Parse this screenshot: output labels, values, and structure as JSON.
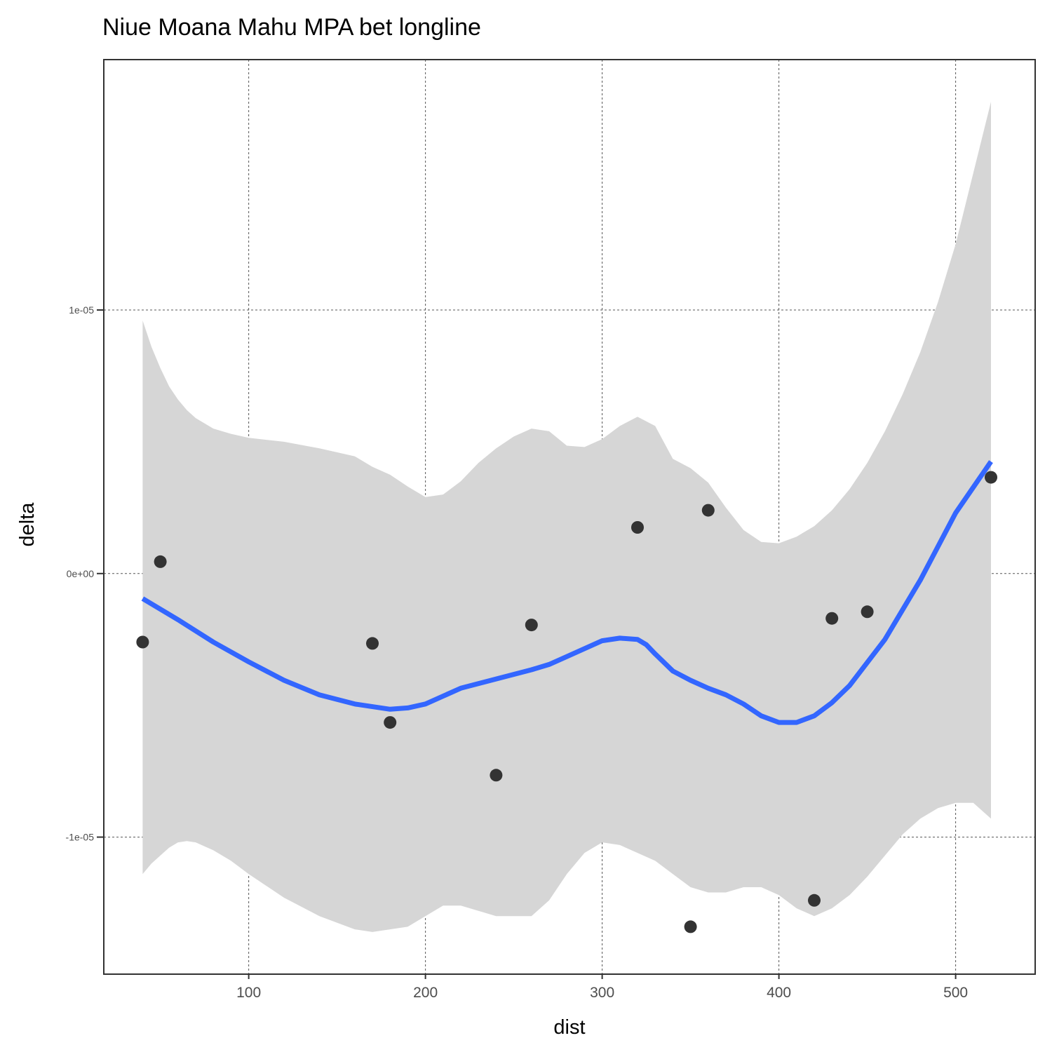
{
  "chart_data": {
    "type": "scatter",
    "title": "Niue Moana Mahu MPA bet longline",
    "xlabel": "dist",
    "ylabel": "delta",
    "xlim": [
      18,
      545
    ],
    "ylim": [
      -1.52e-05,
      1.95e-05
    ],
    "x_ticks": [
      100,
      200,
      300,
      400,
      500
    ],
    "x_tick_labels": [
      "100",
      "200",
      "300",
      "400",
      "500"
    ],
    "y_ticks": [
      -1e-05,
      0,
      1e-05
    ],
    "y_tick_labels": [
      "-1e-05",
      "0e+00",
      "1e-05"
    ],
    "grid": true,
    "legend": "none",
    "colors": {
      "points": "#333333",
      "smooth_line": "#3366ff",
      "ribbon": "#d6d6d6",
      "grid": "#555555",
      "frame": "#333333"
    },
    "series": [
      {
        "type": "scatter",
        "points": [
          {
            "x": 40,
            "y": -2.6e-06
          },
          {
            "x": 50,
            "y": 4.5e-07
          },
          {
            "x": 170,
            "y": -2.65e-06
          },
          {
            "x": 180,
            "y": -5.65e-06
          },
          {
            "x": 240,
            "y": -7.65e-06
          },
          {
            "x": 260,
            "y": -1.95e-06
          },
          {
            "x": 320,
            "y": 1.75e-06
          },
          {
            "x": 350,
            "y": -1.34e-05
          },
          {
            "x": 360,
            "y": 2.4e-06
          },
          {
            "x": 420,
            "y": -1.24e-05
          },
          {
            "x": 430,
            "y": -1.7e-06
          },
          {
            "x": 450,
            "y": -1.45e-06
          },
          {
            "x": 520,
            "y": 3.65e-06
          }
        ]
      },
      {
        "type": "line",
        "x": [
          40,
          60,
          80,
          100,
          120,
          140,
          160,
          180,
          190,
          200,
          220,
          240,
          260,
          270,
          280,
          300,
          310,
          320,
          325,
          330,
          340,
          350,
          360,
          370,
          380,
          390,
          400,
          410,
          420,
          430,
          440,
          460,
          480,
          500,
          520
        ],
        "y": [
          -9.5e-07,
          -1.75e-06,
          -2.6e-06,
          -3.35e-06,
          -4.05e-06,
          -4.6e-06,
          -4.95e-06,
          -5.15e-06,
          -5.1e-06,
          -4.95e-06,
          -4.35e-06,
          -4e-06,
          -3.65e-06,
          -3.45e-06,
          -3.15e-06,
          -2.55e-06,
          -2.45e-06,
          -2.5e-06,
          -2.7e-06,
          -3.05e-06,
          -3.7e-06,
          -4.05e-06,
          -4.35e-06,
          -4.6e-06,
          -4.95e-06,
          -5.4e-06,
          -5.65e-06,
          -5.65e-06,
          -5.4e-06,
          -4.9e-06,
          -4.25e-06,
          -2.5e-06,
          -2.5e-07,
          2.3e-06,
          4.25e-06
        ]
      },
      {
        "type": "ribbon",
        "x": [
          40,
          45,
          50,
          55,
          60,
          65,
          70,
          80,
          90,
          100,
          120,
          140,
          160,
          170,
          180,
          190,
          200,
          210,
          220,
          230,
          240,
          250,
          260,
          270,
          280,
          290,
          300,
          310,
          320,
          330,
          340,
          350,
          360,
          370,
          380,
          390,
          400,
          410,
          420,
          430,
          440,
          450,
          460,
          470,
          480,
          490,
          500,
          510,
          520
        ],
        "ymin": [
          -1.14e-05,
          -1.1e-05,
          -1.07e-05,
          -1.04e-05,
          -1.02e-05,
          -1.015e-05,
          -1.02e-05,
          -1.05e-05,
          -1.09e-05,
          -1.14e-05,
          -1.23e-05,
          -1.3e-05,
          -1.35e-05,
          -1.36e-05,
          -1.35e-05,
          -1.34e-05,
          -1.3e-05,
          -1.26e-05,
          -1.26e-05,
          -1.28e-05,
          -1.3e-05,
          -1.3e-05,
          -1.3e-05,
          -1.24e-05,
          -1.14e-05,
          -1.06e-05,
          -1.02e-05,
          -1.03e-05,
          -1.06e-05,
          -1.09e-05,
          -1.14e-05,
          -1.19e-05,
          -1.21e-05,
          -1.21e-05,
          -1.19e-05,
          -1.19e-05,
          -1.22e-05,
          -1.27e-05,
          -1.3e-05,
          -1.27e-05,
          -1.22e-05,
          -1.15e-05,
          -1.07e-05,
          -9.9e-06,
          -9.3e-06,
          -8.9e-06,
          -8.7e-06,
          -8.7e-06,
          -9.3e-06
        ],
        "ymax": [
          9.6e-06,
          8.6e-06,
          7.8e-06,
          7.1e-06,
          6.6e-06,
          6.2e-06,
          5.9e-06,
          5.5e-06,
          5.3e-06,
          5.15e-06,
          5e-06,
          4.75e-06,
          4.45e-06,
          4.05e-06,
          3.75e-06,
          3.3e-06,
          2.9e-06,
          3e-06,
          3.5e-06,
          4.2e-06,
          4.75e-06,
          5.2e-06,
          5.5e-06,
          5.4e-06,
          4.85e-06,
          4.8e-06,
          5.1e-06,
          5.6e-06,
          5.95e-06,
          5.6e-06,
          4.35e-06,
          4e-06,
          3.45e-06,
          2.5e-06,
          1.65e-06,
          1.2e-06,
          1.15e-06,
          1.4e-06,
          1.8e-06,
          2.4e-06,
          3.2e-06,
          4.2e-06,
          5.4e-06,
          6.8e-06,
          8.4e-06,
          1.03e-05,
          1.25e-05,
          1.52e-05,
          1.79e-05
        ]
      }
    ]
  }
}
